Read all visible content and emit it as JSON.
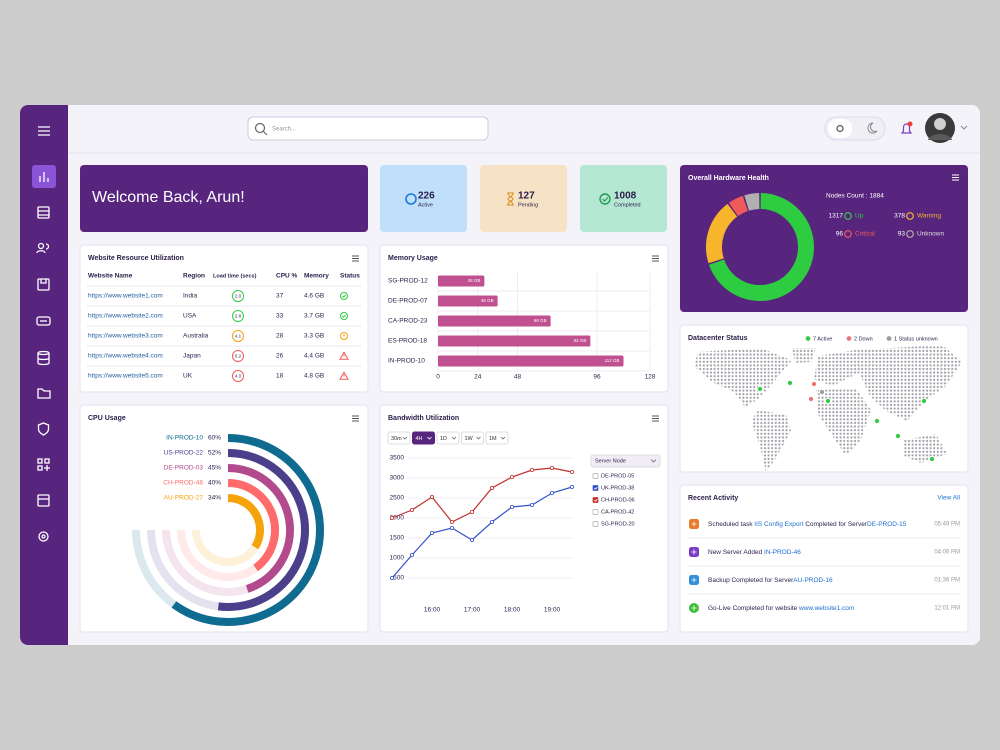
{
  "header": {
    "search_placeholder": "Search..."
  },
  "welcome": "Welcome Back, Arun!",
  "stats": [
    {
      "value": 226,
      "label": "Active"
    },
    {
      "value": 127,
      "label": "Pending"
    },
    {
      "value": 1008,
      "label": "Completed"
    }
  ],
  "website_table": {
    "title": "Website Resource Utilization",
    "columns": [
      "Website Name",
      "Region",
      "Load time (secs)",
      "CPU %",
      "Memory",
      "Status"
    ],
    "rows": [
      [
        "https://www.website1.com",
        "India",
        "2.0",
        37,
        "4.6 GB"
      ],
      [
        "https://www.website2.com",
        "USA",
        "2.8",
        33,
        "3.7 GB"
      ],
      [
        "https://www.website3.com",
        "Australia",
        "4.1",
        28,
        "3.3 GB"
      ],
      [
        "https://www.website4.com",
        "Japan",
        "5.2",
        26,
        "4.4 GB"
      ],
      [
        "https://www.website5.com",
        "UK",
        "4.0",
        18,
        "4.8 GB"
      ]
    ]
  },
  "datacenter": {
    "title": "Datacenter Status",
    "legend": [
      {
        "label": "7 Active",
        "color": "#2ecc40"
      },
      {
        "label": "2 Down",
        "color": "#f07070"
      },
      {
        "label": "1 Status unknown",
        "color": "#9a9a9a"
      }
    ]
  },
  "activity": {
    "title": "Recent Activity",
    "view_all": "View All",
    "items": [
      {
        "parts": [
          "Scheduled task ",
          "IIS Config Export",
          " Completed for Server",
          "DE-PROD-15"
        ],
        "time": "05:49 PM",
        "color": "#e8782a"
      },
      {
        "parts": [
          "New Server Added ",
          "IN-PROD-46"
        ],
        "time": "04:06 PM",
        "color": "#7a3fc4"
      },
      {
        "parts": [
          "Backup Completed for Server",
          "AU-PROD-16"
        ],
        "time": "01:36 PM",
        "color": "#2f8fd8"
      },
      {
        "parts": [
          "Go-Live Completed for website ",
          "www.website1.com"
        ],
        "time": "12:01 PM",
        "color": "#3cbf3c"
      }
    ]
  },
  "chart_data": [
    {
      "type": "bar",
      "orientation": "horizontal",
      "title": "Memory Usage",
      "categories": [
        "SG-PROD-12",
        "DE-PROD-07",
        "CA-PROD-23",
        "ES-PROD-18",
        "IN-PROD-10"
      ],
      "values": [
        28,
        36,
        68,
        92,
        112
      ],
      "value_labels": [
        "28 GB",
        "36 GB",
        "68 GB",
        "92 GB",
        "112 GB"
      ],
      "color": "#c0508f",
      "xlim": [
        0,
        128
      ],
      "xticks": [
        0,
        24,
        48,
        96,
        128
      ],
      "grid": true
    },
    {
      "type": "radial_bar",
      "title": "CPU Usage",
      "categories": [
        "IN-PROD-10",
        "US-PROD-22",
        "DE-PROD-03",
        "CH-PROD-48",
        "AU-PROD-27"
      ],
      "values": [
        60,
        52,
        45,
        40,
        34
      ],
      "value_labels": [
        "60%",
        "52%",
        "45%",
        "40%",
        "34%"
      ],
      "colors": [
        "#0f6b8f",
        "#4b3f8c",
        "#b24a8e",
        "#ff6b6b",
        "#f5a30a"
      ]
    },
    {
      "type": "line",
      "title": "Bandwidth Utilization",
      "x": [
        null,
        null,
        "16:00",
        null,
        "17:00",
        null,
        "18:00",
        null,
        "19:00",
        null
      ],
      "ylim": [
        0,
        3500
      ],
      "yticks": [
        500,
        1000,
        1500,
        2000,
        2500,
        3000,
        3500
      ],
      "grid": true,
      "ranges": [
        "30m",
        "4H",
        "1D",
        "1W",
        "1M"
      ],
      "active_range": 1,
      "legend_title": "Server Node",
      "series": [
        {
          "name": "DE-PROD-05",
          "checked": false
        },
        {
          "name": "UK-PROD-38",
          "checked": true,
          "color": "#3553c9",
          "values": [
            500,
            1075,
            1625,
            1750,
            1450,
            1900,
            2275,
            2325,
            2625,
            2775
          ]
        },
        {
          "name": "CH-PROD-06",
          "checked": true,
          "color": "#c0302b",
          "values": [
            2000,
            2200,
            2525,
            1900,
            2150,
            2750,
            3025,
            3200,
            3250,
            3150
          ]
        },
        {
          "name": "CA-PROD-42",
          "checked": false
        },
        {
          "name": "SG-PROD-20",
          "checked": false
        }
      ]
    },
    {
      "type": "donut",
      "title": "Overall Hardware Health",
      "subtitle": "Nodes Count : 1884",
      "categories": [
        "Up",
        "Warning",
        "Critical",
        "Unknown"
      ],
      "values": [
        1317,
        378,
        96,
        93
      ],
      "colors": [
        "#2ecc40",
        "#f7b52c",
        "#f05a5a",
        "#b0b0b0"
      ]
    }
  ]
}
